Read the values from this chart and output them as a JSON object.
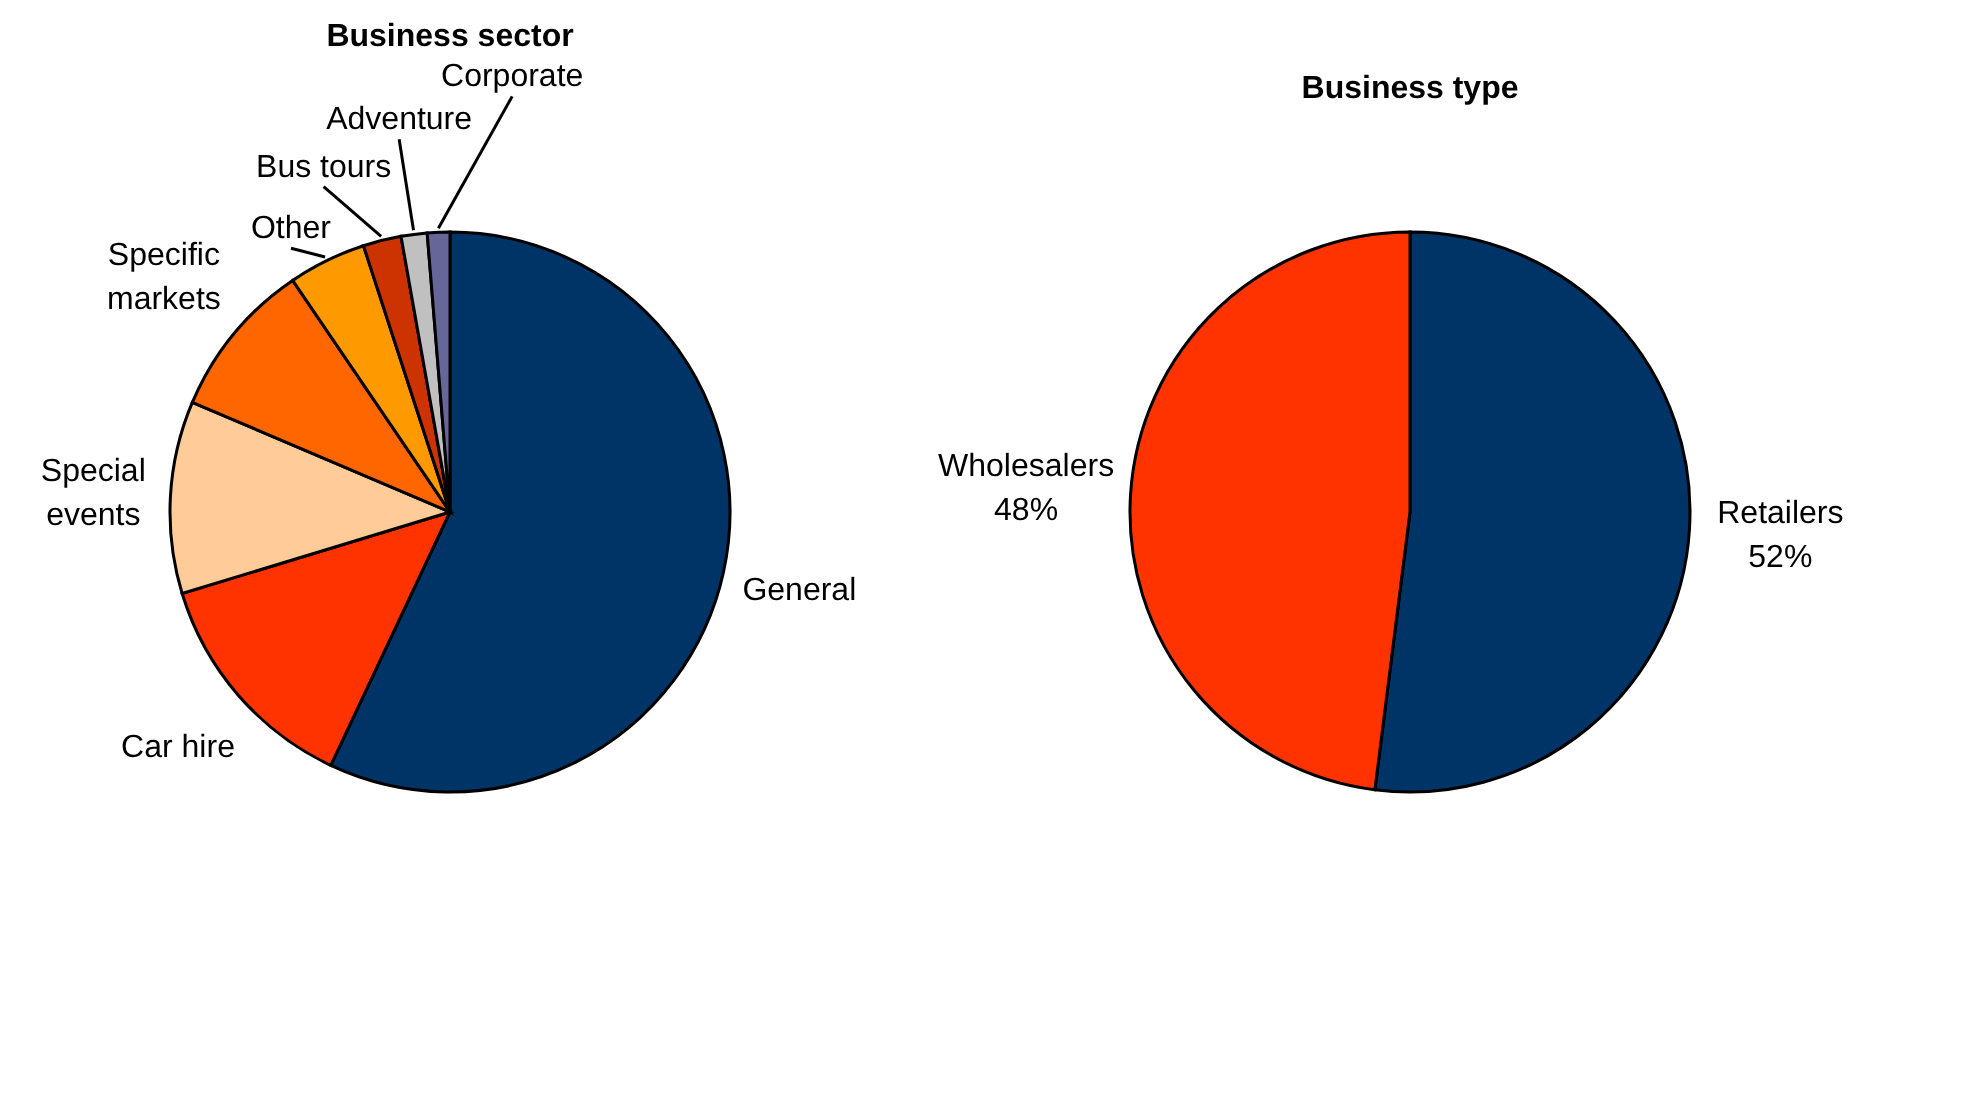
{
  "chart_data": [
    {
      "type": "pie",
      "title": "Business sector",
      "categories": [
        "General",
        "Car hire",
        "Special events",
        "Specific markets",
        "Other",
        "Bus tours",
        "Adventure",
        "Corporate"
      ],
      "values": [
        57,
        13.3,
        11.1,
        9.1,
        4.5,
        2.2,
        1.5,
        1.3
      ],
      "colors": [
        "#003366",
        "#ff3300",
        "#ffcc99",
        "#ff6600",
        "#ff9900",
        "#cc3300",
        "#c0c0c0",
        "#666699"
      ],
      "legend": false
    },
    {
      "type": "pie",
      "title": "Business type",
      "categories": [
        "Retailers",
        "Wholesalers"
      ],
      "values": [
        52,
        48
      ],
      "colors": [
        "#003366",
        "#ff3300"
      ],
      "value_labels": [
        "52%",
        "48%"
      ],
      "legend": false
    }
  ]
}
